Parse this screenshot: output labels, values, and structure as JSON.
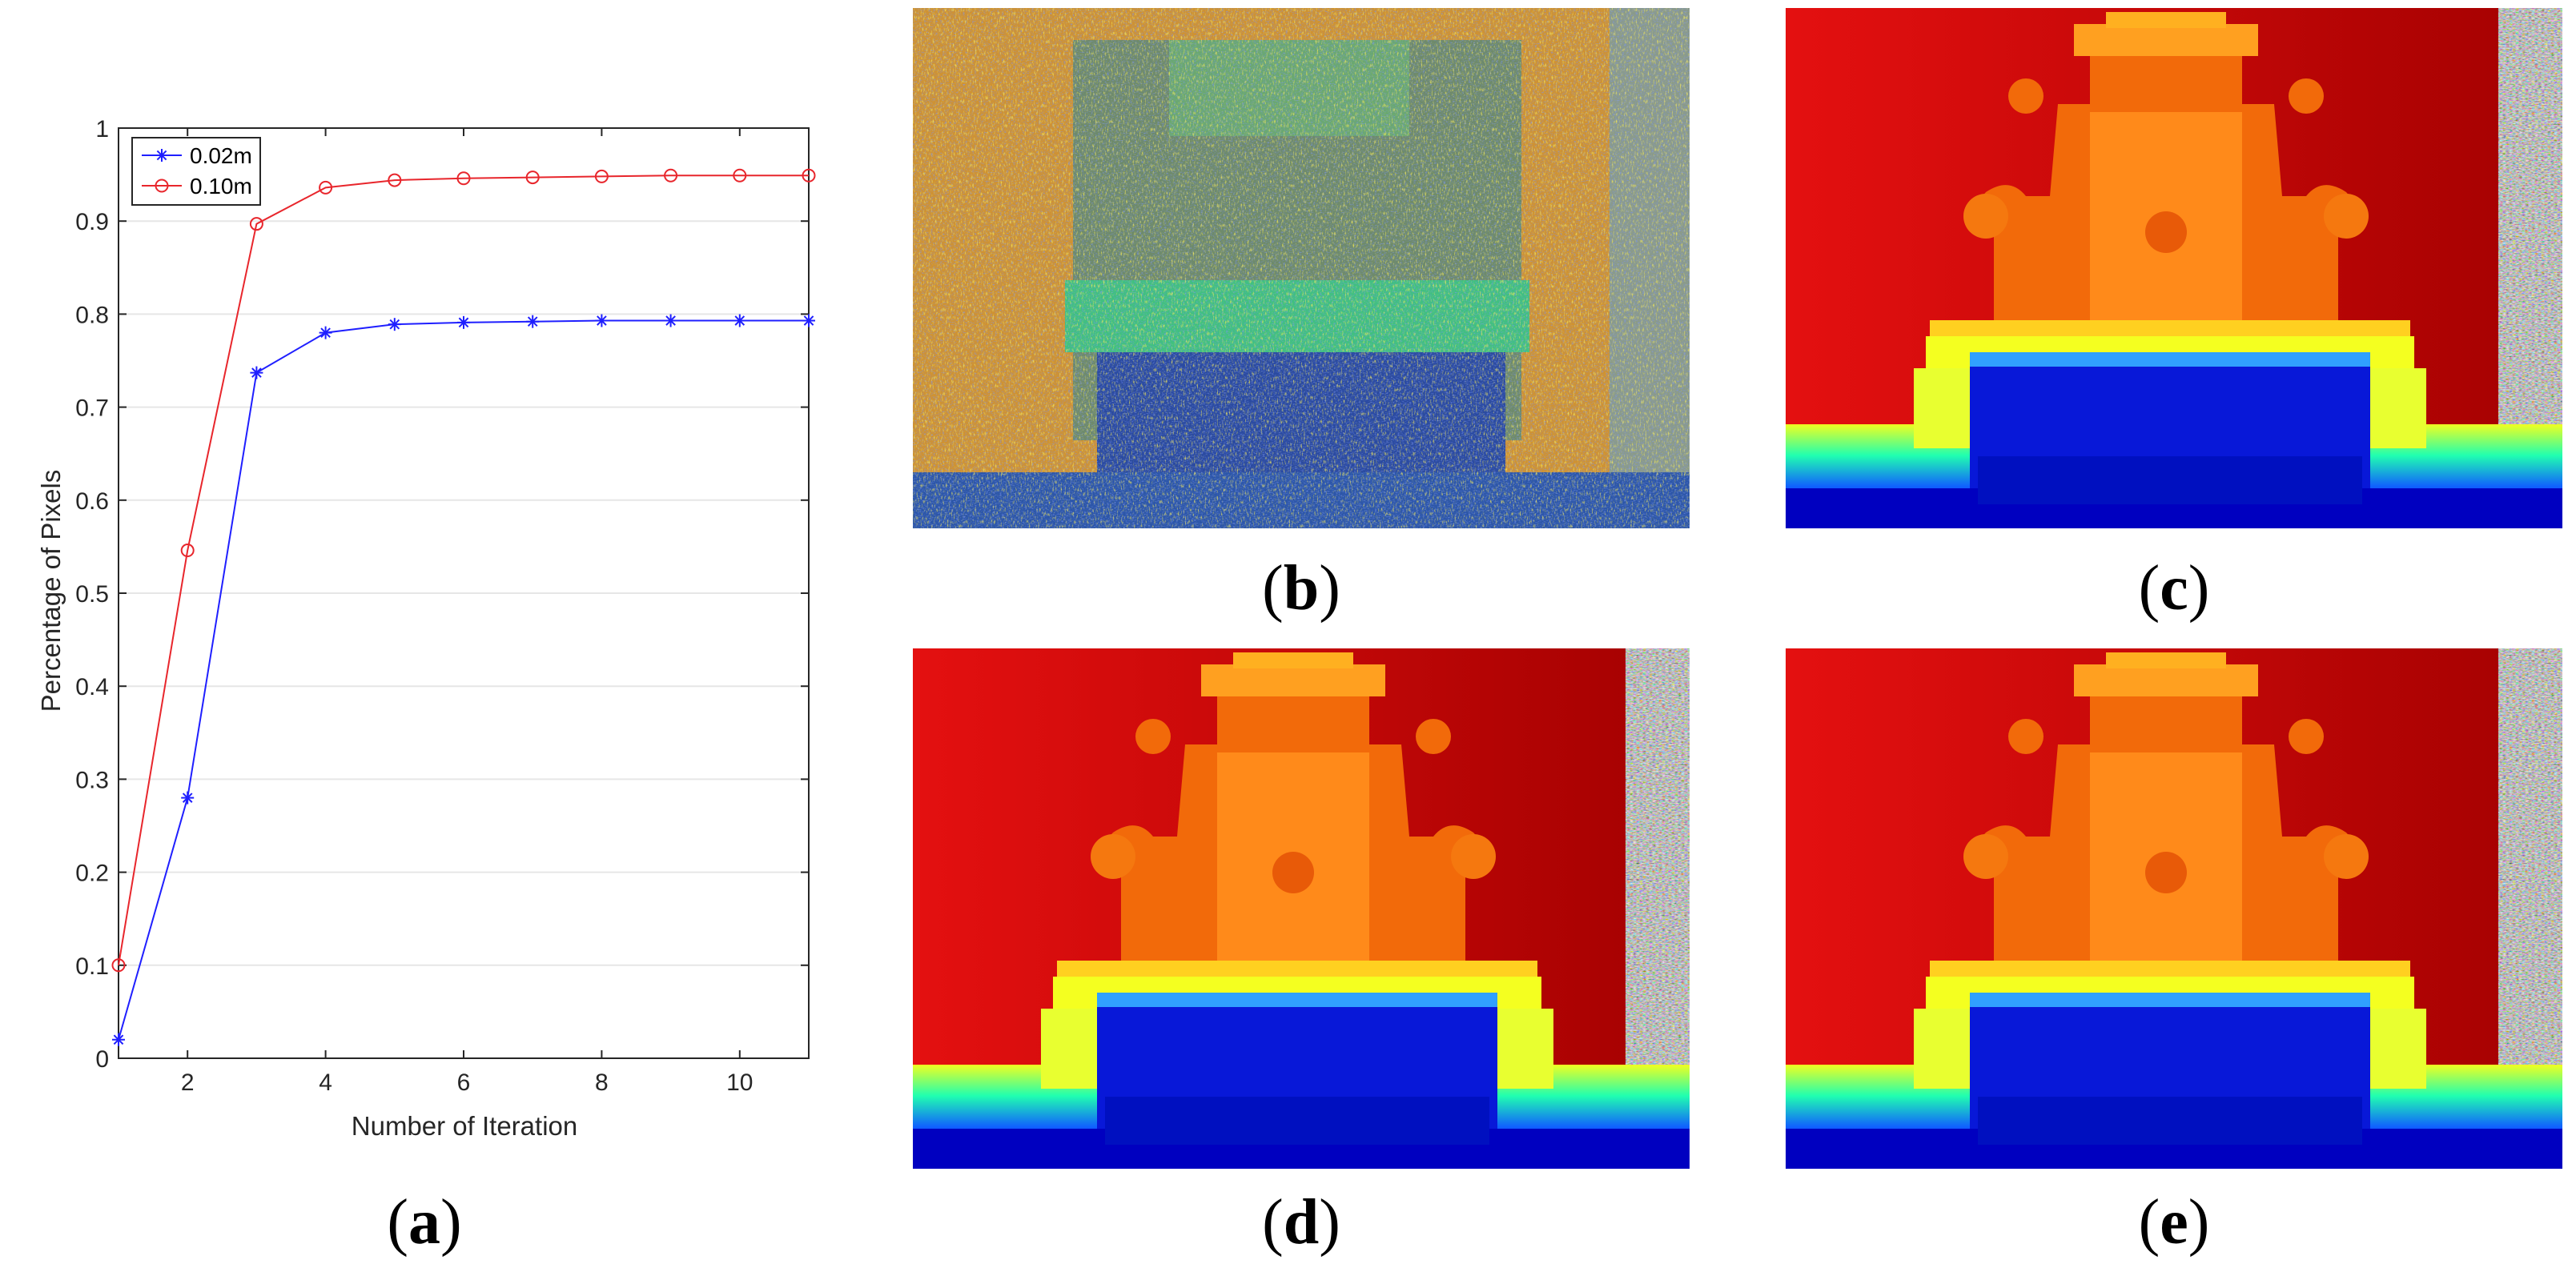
{
  "chart_data": {
    "type": "line",
    "xlabel": "Number of Iteration",
    "ylabel": "Percentage of Pixels",
    "xlim": [
      1,
      11
    ],
    "ylim": [
      0,
      1
    ],
    "xticks": [
      2,
      4,
      6,
      8,
      10
    ],
    "yticks": [
      0,
      0.1,
      0.2,
      0.3,
      0.4,
      0.5,
      0.6,
      0.7,
      0.8,
      0.9,
      1
    ],
    "grid": "horizontal",
    "legend_position": "top-left",
    "x": [
      1,
      2,
      3,
      4,
      5,
      6,
      7,
      8,
      9,
      10,
      11
    ],
    "series": [
      {
        "name": "0.02m",
        "color": "#1f1fff",
        "marker": "asterisk",
        "values": [
          0.02,
          0.28,
          0.737,
          0.78,
          0.789,
          0.791,
          0.792,
          0.793,
          0.793,
          0.793,
          0.793
        ]
      },
      {
        "name": "0.10m",
        "color": "#e8262c",
        "marker": "circle",
        "values": [
          0.1,
          0.546,
          0.897,
          0.936,
          0.944,
          0.946,
          0.947,
          0.948,
          0.949,
          0.949,
          0.949
        ]
      }
    ]
  },
  "captions": {
    "a": {
      "open": "(",
      "letter": "a",
      "close": ")"
    },
    "b": {
      "open": "(",
      "letter": "b",
      "close": ")"
    },
    "c": {
      "open": "(",
      "letter": "c",
      "close": ")"
    },
    "d": {
      "open": "(",
      "letter": "d",
      "close": ")"
    },
    "e": {
      "open": "(",
      "letter": "e",
      "close": ")"
    }
  },
  "panel_images": {
    "b": "noisy-depth-map",
    "c": "refined-depth-map",
    "d": "refined-depth-map",
    "e": "refined-depth-map"
  }
}
